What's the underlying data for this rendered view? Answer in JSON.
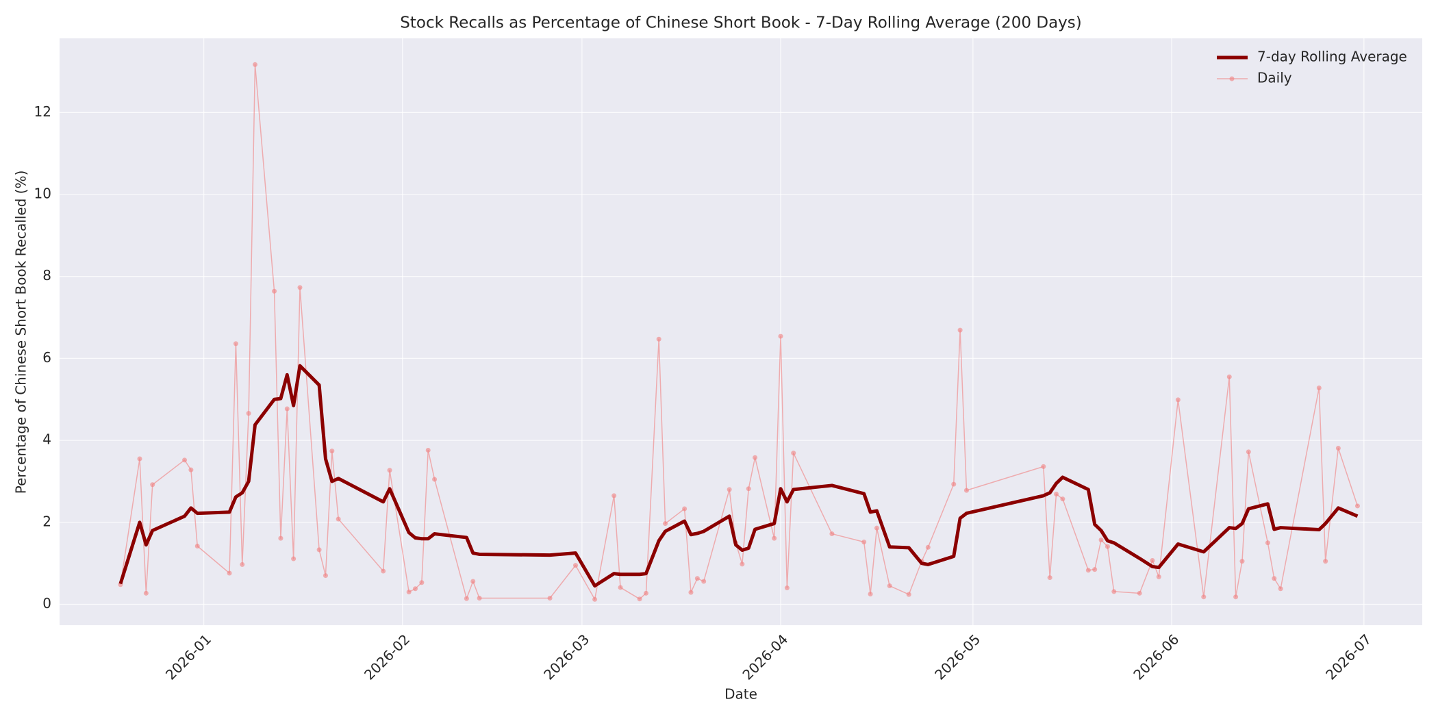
{
  "chart_data": {
    "type": "line",
    "title": "Stock Recalls as Percentage of Chinese Short Book - 7-Day Rolling Average (200 Days)",
    "xlabel": "Date",
    "ylabel": "Percentage of Chinese Short Book Recalled (%)",
    "x": [
      -13,
      -10,
      -9,
      -8,
      -3,
      -2,
      -1,
      4,
      5,
      6,
      7,
      8,
      11,
      12,
      13,
      14,
      15,
      18,
      19,
      20,
      21,
      28,
      29,
      32,
      33,
      34,
      35,
      36,
      41,
      42,
      43,
      54,
      58,
      61,
      64,
      65,
      68,
      69,
      71,
      72,
      75,
      76,
      77,
      78,
      82,
      83,
      84,
      85,
      86,
      89,
      90,
      91,
      92,
      98,
      103,
      104,
      105,
      107,
      110,
      112,
      113,
      117,
      118,
      119,
      131,
      132,
      133,
      134,
      138,
      139,
      140,
      141,
      142,
      146,
      148,
      149,
      152,
      156,
      160,
      161,
      162,
      163,
      166,
      167,
      168,
      174,
      175,
      177,
      180
    ],
    "series": [
      {
        "name": "7-day Rolling Average",
        "color": "#8b0000",
        "width": 5,
        "values": [
          0.5,
          2.0,
          1.45,
          1.8,
          2.15,
          2.35,
          2.22,
          2.25,
          2.62,
          2.72,
          3.0,
          4.38,
          5.0,
          5.02,
          5.6,
          4.85,
          5.82,
          5.35,
          3.55,
          3.0,
          3.07,
          2.5,
          2.82,
          1.75,
          1.62,
          1.6,
          1.6,
          1.72,
          1.63,
          1.25,
          1.22,
          1.2,
          1.25,
          0.45,
          0.75,
          0.73,
          0.73,
          0.75,
          1.55,
          1.78,
          2.03,
          1.7,
          1.73,
          1.78,
          2.15,
          1.45,
          1.32,
          1.37,
          1.83,
          1.97,
          2.82,
          2.5,
          2.8,
          2.9,
          2.7,
          2.25,
          2.28,
          1.4,
          1.38,
          1.0,
          0.97,
          1.17,
          2.1,
          2.22,
          2.65,
          2.72,
          2.95,
          3.1,
          2.8,
          1.95,
          1.8,
          1.55,
          1.5,
          1.12,
          0.92,
          0.9,
          1.47,
          1.28,
          1.87,
          1.85,
          1.97,
          2.33,
          2.45,
          1.83,
          1.87,
          1.82,
          1.97,
          2.35,
          2.15
        ]
      },
      {
        "name": "Daily",
        "color": "#f08080",
        "width": 1.5,
        "markers": true,
        "values": [
          0.48,
          3.55,
          0.27,
          2.92,
          3.52,
          3.28,
          1.42,
          0.76,
          6.36,
          0.97,
          4.66,
          13.17,
          7.64,
          1.61,
          4.77,
          1.11,
          7.73,
          1.33,
          0.7,
          3.74,
          2.08,
          0.81,
          3.27,
          0.3,
          0.38,
          0.53,
          3.76,
          3.05,
          0.14,
          0.56,
          0.15,
          0.15,
          0.95,
          0.12,
          2.65,
          0.41,
          0.13,
          0.27,
          6.47,
          1.97,
          2.33,
          0.29,
          0.63,
          0.56,
          2.8,
          1.5,
          0.98,
          2.82,
          3.58,
          1.61,
          6.54,
          0.4,
          3.69,
          1.72,
          1.52,
          0.25,
          1.86,
          0.45,
          0.24,
          1.05,
          1.39,
          2.93,
          6.69,
          2.78,
          3.36,
          0.65,
          2.69,
          2.57,
          0.83,
          0.85,
          1.57,
          1.41,
          0.31,
          0.27,
          1.07,
          0.67,
          4.99,
          0.18,
          5.55,
          0.18,
          1.05,
          3.72,
          1.5,
          0.63,
          0.38,
          5.28,
          1.05,
          3.81,
          2.4
        ]
      }
    ],
    "xlim": [
      -22.5,
      190.1
    ],
    "xticks": [
      {
        "value": 0,
        "label": "2026-01"
      },
      {
        "value": 31,
        "label": "2026-02"
      },
      {
        "value": 59,
        "label": "2026-03"
      },
      {
        "value": 90,
        "label": "2026-04"
      },
      {
        "value": 120,
        "label": "2026-05"
      },
      {
        "value": 151,
        "label": "2026-06"
      },
      {
        "value": 181,
        "label": "2026-07"
      }
    ],
    "ylim": [
      -0.51,
      13.81
    ],
    "yticks": [
      0,
      2,
      4,
      6,
      8,
      10,
      12
    ],
    "grid": true,
    "legend": "upper right"
  }
}
